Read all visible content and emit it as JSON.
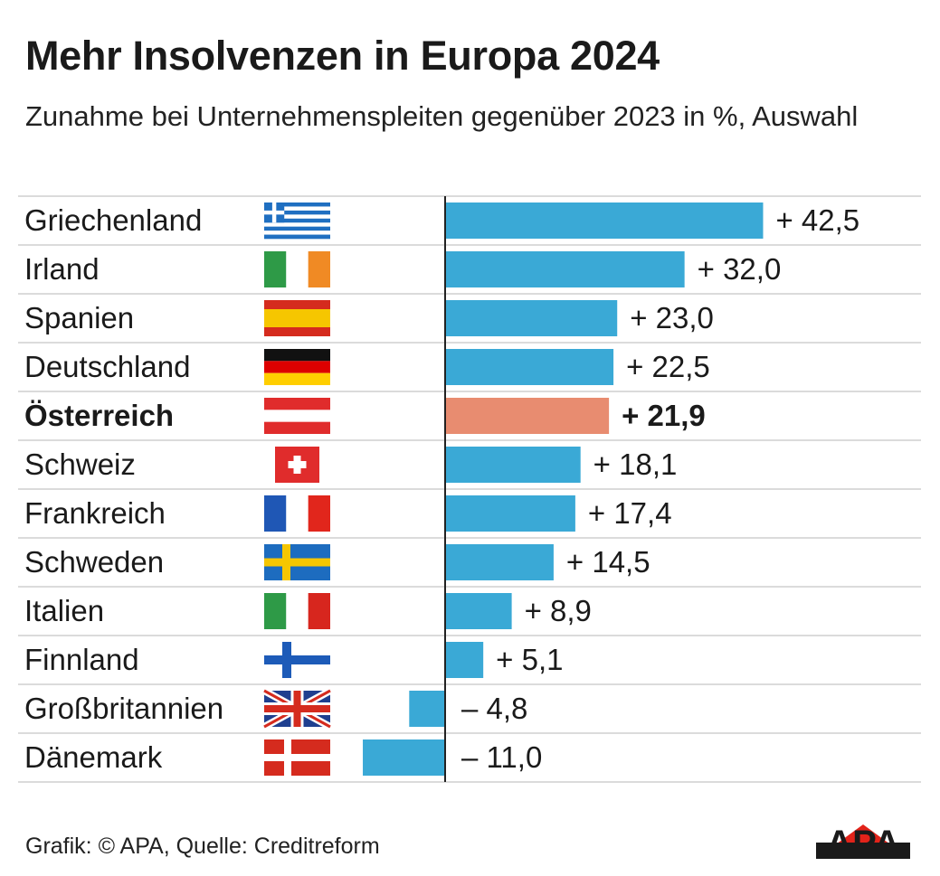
{
  "title": "Mehr Insolvenzen in Europa 2024",
  "subtitle": "Zunahme bei Unternehmenspleiten gegenüber 2023 in %, Auswahl",
  "footer": "Grafik: © APA, Quelle: Creditreform",
  "logo_text": "APA",
  "colors": {
    "bar": "#3aa9d6",
    "bar_highlight": "#e88c70",
    "gridline": "#cfcfcf",
    "axis": "#222222",
    "text": "#1a1a1a",
    "logo_red": "#e2231a"
  },
  "chart_data": {
    "type": "bar",
    "orientation": "horizontal",
    "title": "Mehr Insolvenzen in Europa 2024",
    "subtitle": "Zunahme bei Unternehmenspleiten gegenüber 2023 in %, Auswahl",
    "xlabel": "",
    "ylabel": "",
    "xlim": [
      -11,
      42.5
    ],
    "categories": [
      "Griechenland",
      "Irland",
      "Spanien",
      "Deutschland",
      "Österreich",
      "Schweiz",
      "Frankreich",
      "Schweden",
      "Italien",
      "Finnland",
      "Großbritannien",
      "Dänemark"
    ],
    "values": [
      42.5,
      32.0,
      23.0,
      22.5,
      21.9,
      18.1,
      17.4,
      14.5,
      8.9,
      5.1,
      -4.8,
      -11.0
    ],
    "labels": [
      "+ 42,5",
      "+ 32,0",
      "+ 23,0",
      "+ 22,5",
      "+ 21,9",
      "+ 18,1",
      "+ 17,4",
      "+ 14,5",
      "+ 8,9",
      "+ 5,1",
      "– 4,8",
      "– 11,0"
    ],
    "highlight": "Österreich",
    "flags": [
      "greece-flag-icon",
      "ireland-flag-icon",
      "spain-flag-icon",
      "germany-flag-icon",
      "austria-flag-icon",
      "switzerland-flag-icon",
      "france-flag-icon",
      "sweden-flag-icon",
      "italy-flag-icon",
      "finland-flag-icon",
      "uk-flag-icon",
      "denmark-flag-icon"
    ]
  }
}
